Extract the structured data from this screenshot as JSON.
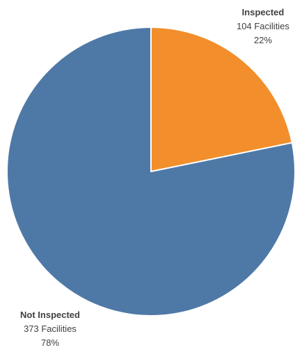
{
  "chart_data": {
    "type": "pie",
    "title": "",
    "slices": [
      {
        "label": "Inspected",
        "count_text": "104 Facilities",
        "percent_text": "22%",
        "value": 104,
        "color": "#F28E2B"
      },
      {
        "label": "Not Inspected",
        "count_text": "373 Facilities",
        "percent_text": "78%",
        "value": 373,
        "color": "#4E79A7"
      }
    ],
    "start_angle_deg": 0,
    "direction": "clockwise",
    "slice_border_color": "#ffffff",
    "legend": "none"
  }
}
